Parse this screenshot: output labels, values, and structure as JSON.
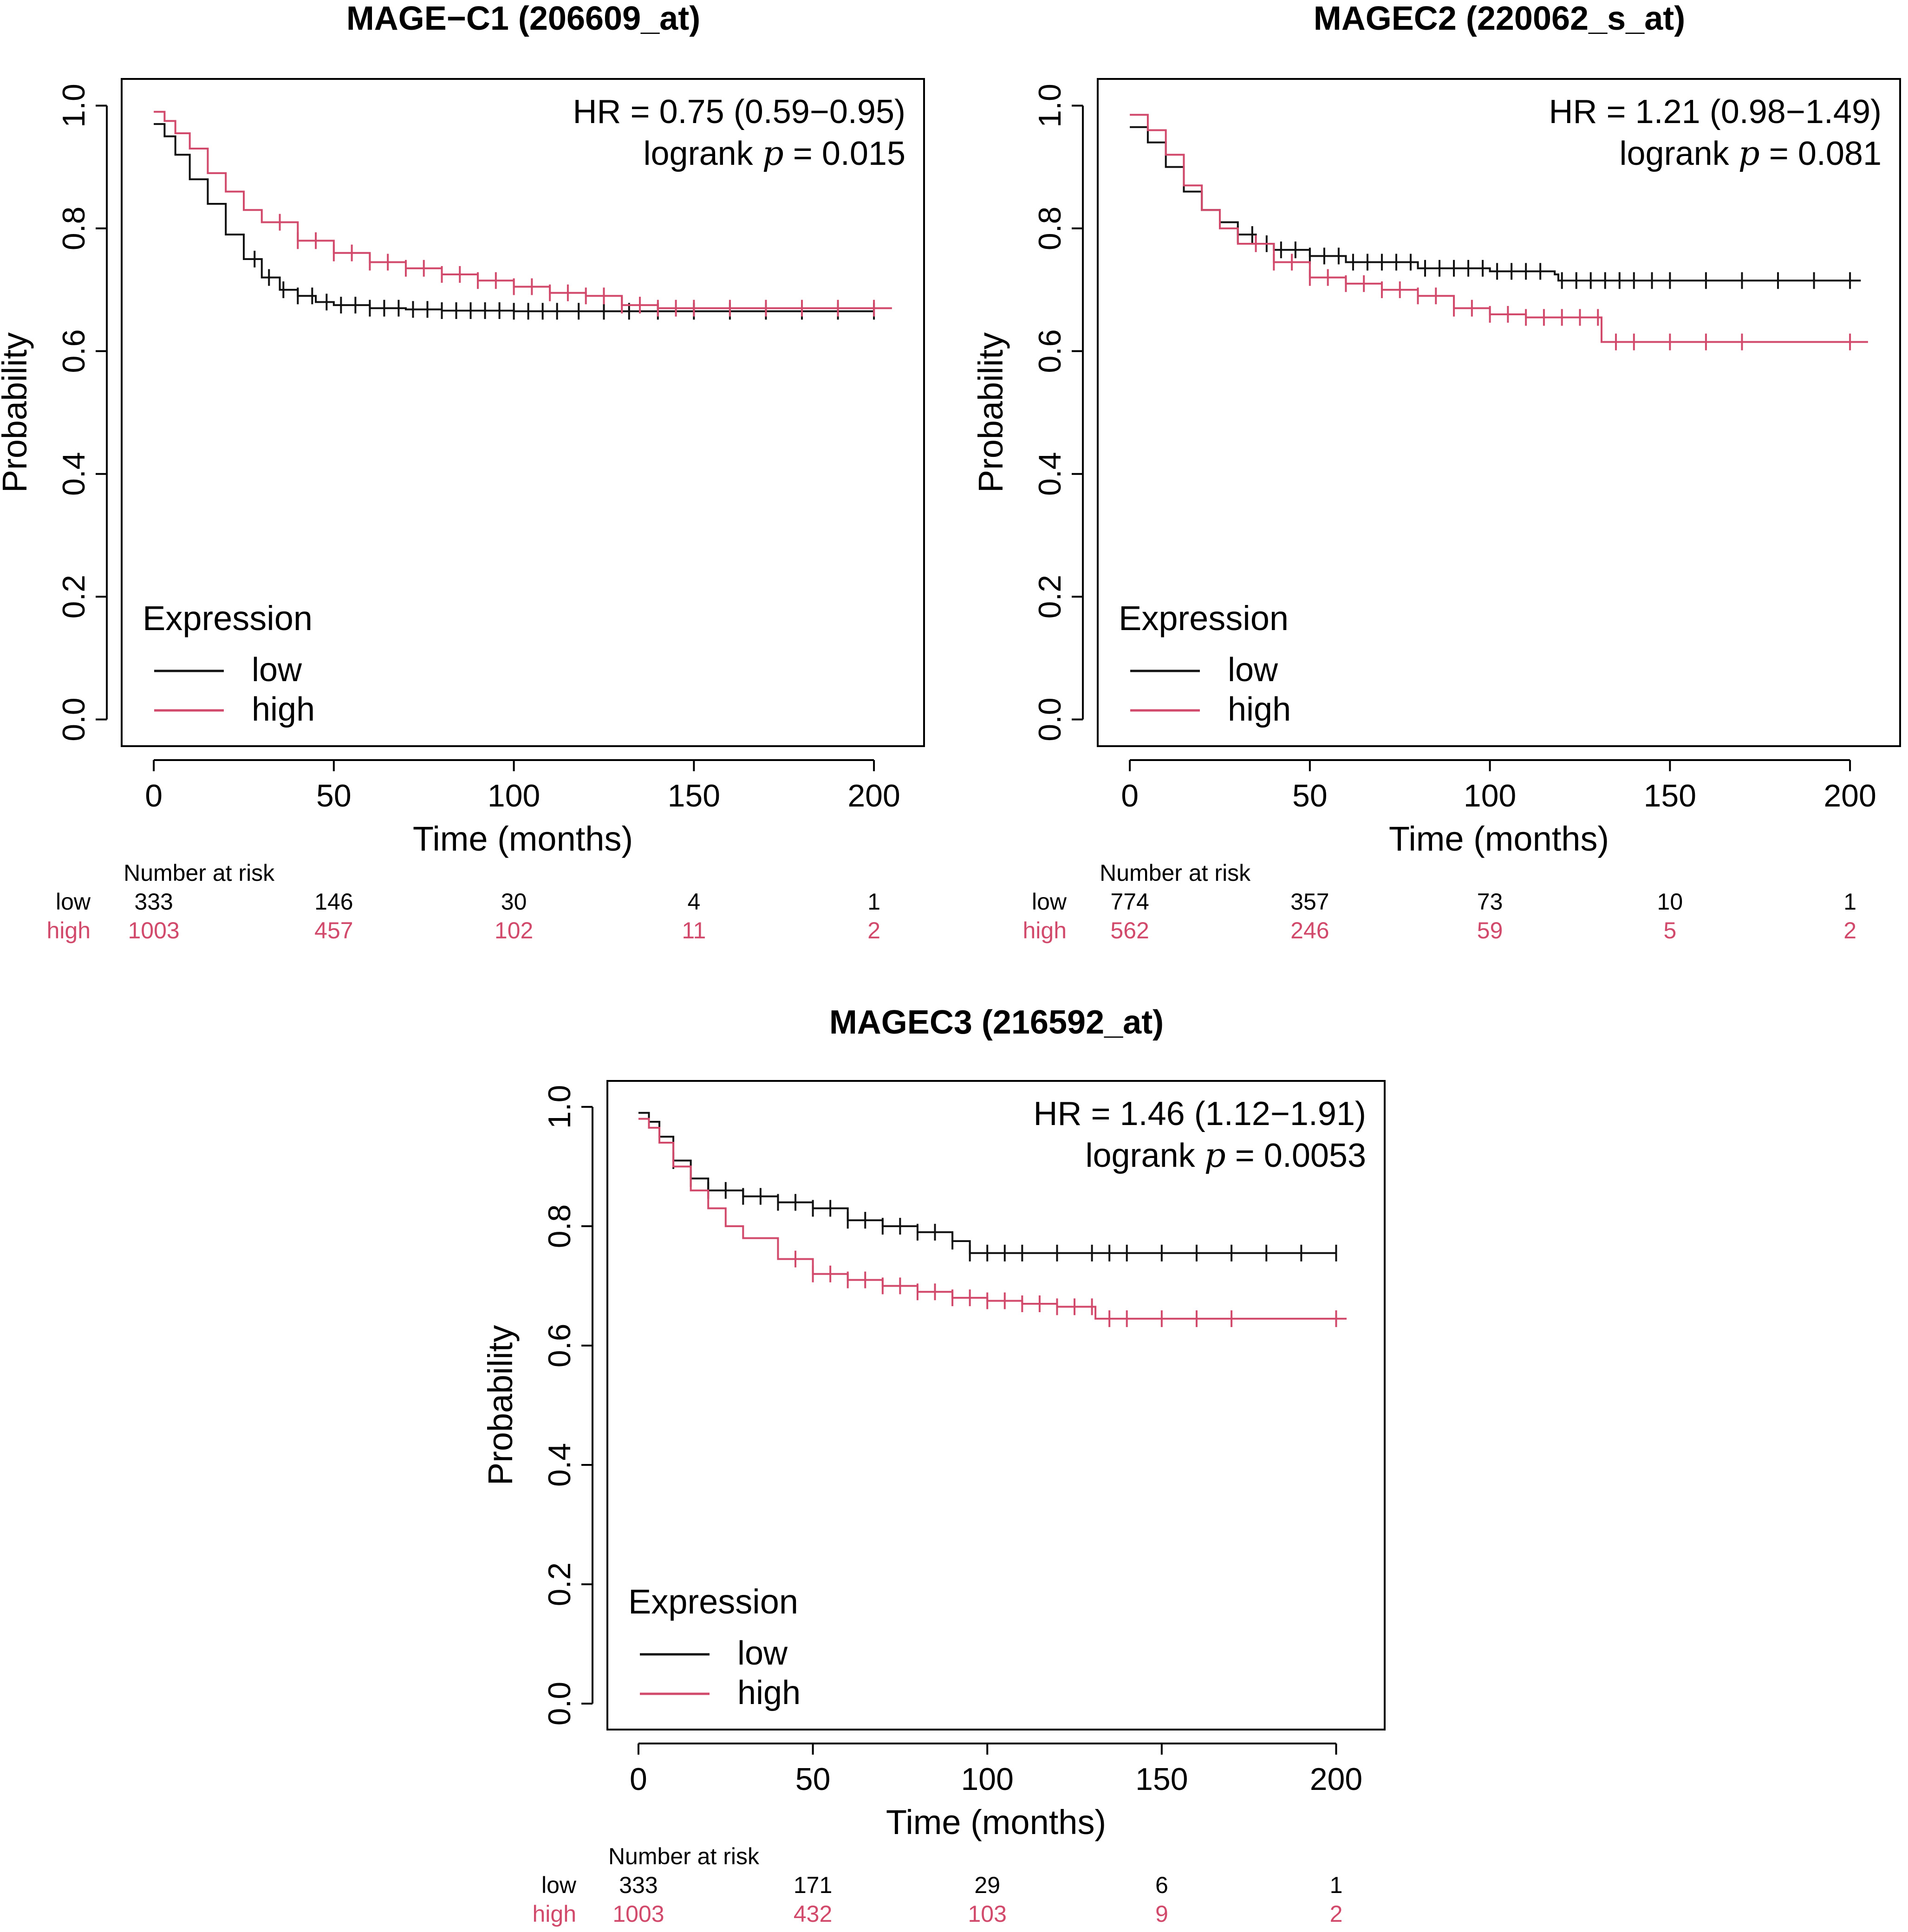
{
  "colors": {
    "low": "#111111",
    "high": "#D1496B",
    "axis": "#000000"
  },
  "chart_data": [
    {
      "type": "line",
      "title": "MAGE−C1 (206609_at)",
      "xlabel": "Time (months)",
      "ylabel": "Probability",
      "xlim": [
        0,
        205
      ],
      "ylim": [
        0,
        1.0
      ],
      "x_ticks": [
        "0",
        "50",
        "100",
        "150",
        "200"
      ],
      "y_ticks": [
        "0.0",
        "0.2",
        "0.4",
        "0.6",
        "0.8",
        "1.0"
      ],
      "hr_text": "HR = 0.75  (0.59−0.95)",
      "logrank_prefix": "logrank ",
      "p_symbol": "p",
      "p_value_text": " = 0.015",
      "legend_title": "Expression",
      "series": [
        {
          "name": "low",
          "x": [
            0,
            3,
            6,
            10,
            15,
            20,
            25,
            30,
            35,
            40,
            45,
            50,
            60,
            70,
            80,
            100,
            150,
            200
          ],
          "y": [
            0.97,
            0.95,
            0.92,
            0.88,
            0.84,
            0.79,
            0.75,
            0.72,
            0.7,
            0.69,
            0.68,
            0.675,
            0.67,
            0.668,
            0.666,
            0.665,
            0.665,
            0.665
          ],
          "censor_x": [
            28,
            32,
            36,
            40,
            44,
            48,
            52,
            56,
            60,
            64,
            68,
            72,
            76,
            80,
            84,
            88,
            92,
            96,
            100,
            104,
            108,
            112,
            118,
            125,
            132,
            140,
            150,
            160,
            170,
            180,
            190,
            200
          ]
        },
        {
          "name": "high",
          "x": [
            0,
            3,
            6,
            10,
            15,
            20,
            25,
            30,
            40,
            50,
            60,
            70,
            80,
            90,
            100,
            110,
            120,
            130,
            140,
            150,
            200,
            205
          ],
          "y": [
            0.99,
            0.975,
            0.955,
            0.93,
            0.89,
            0.86,
            0.83,
            0.81,
            0.78,
            0.76,
            0.745,
            0.735,
            0.725,
            0.715,
            0.705,
            0.695,
            0.69,
            0.675,
            0.67,
            0.67,
            0.67,
            0.67
          ],
          "censor_x": [
            35,
            40,
            45,
            50,
            55,
            60,
            65,
            70,
            75,
            80,
            85,
            90,
            95,
            100,
            105,
            110,
            115,
            120,
            125,
            130,
            135,
            140,
            145,
            150,
            160,
            170,
            180,
            190,
            200
          ]
        }
      ],
      "risk_table": {
        "header": "Number at risk",
        "times": [
          "0",
          "50",
          "100",
          "150",
          "200"
        ],
        "rows": [
          {
            "label": "low",
            "values": [
              "333",
              "146",
              "30",
              "4",
              "1"
            ]
          },
          {
            "label": "high",
            "values": [
              "1003",
              "457",
              "102",
              "11",
              "2"
            ]
          }
        ]
      }
    },
    {
      "type": "line",
      "title": "MAGEC2 (220062_s_at)",
      "xlabel": "Time (months)",
      "ylabel": "Probability",
      "xlim": [
        0,
        205
      ],
      "ylim": [
        0,
        1.0
      ],
      "x_ticks": [
        "0",
        "50",
        "100",
        "150",
        "200"
      ],
      "y_ticks": [
        "0.0",
        "0.2",
        "0.4",
        "0.6",
        "0.8",
        "1.0"
      ],
      "hr_text": "HR = 1.21  (0.98−1.49)",
      "logrank_prefix": "logrank ",
      "p_symbol": "p",
      "p_value_text": " = 0.081",
      "legend_title": "Expression",
      "series": [
        {
          "name": "low",
          "x": [
            0,
            5,
            10,
            15,
            20,
            25,
            30,
            35,
            40,
            50,
            60,
            80,
            100,
            118,
            119,
            200,
            203
          ],
          "y": [
            0.965,
            0.94,
            0.9,
            0.86,
            0.83,
            0.81,
            0.79,
            0.775,
            0.765,
            0.755,
            0.745,
            0.735,
            0.73,
            0.725,
            0.715,
            0.715,
            0.715
          ],
          "censor_x": [
            30,
            34,
            38,
            42,
            46,
            50,
            54,
            58,
            62,
            66,
            70,
            74,
            78,
            82,
            86,
            90,
            94,
            98,
            102,
            106,
            110,
            114,
            120,
            124,
            128,
            132,
            136,
            140,
            145,
            150,
            160,
            170,
            180,
            190,
            200
          ]
        },
        {
          "name": "high",
          "x": [
            0,
            5,
            10,
            15,
            20,
            25,
            30,
            40,
            50,
            60,
            70,
            80,
            90,
            100,
            110,
            120,
            130,
            131,
            200,
            205
          ],
          "y": [
            0.985,
            0.96,
            0.92,
            0.87,
            0.83,
            0.8,
            0.775,
            0.745,
            0.72,
            0.71,
            0.7,
            0.69,
            0.67,
            0.66,
            0.655,
            0.655,
            0.655,
            0.615,
            0.615,
            0.615
          ],
          "censor_x": [
            35,
            40,
            45,
            50,
            55,
            60,
            65,
            70,
            75,
            80,
            85,
            90,
            95,
            100,
            105,
            110,
            115,
            120,
            125,
            130,
            135,
            140,
            150,
            160,
            170,
            200
          ]
        }
      ],
      "risk_table": {
        "header": "Number at risk",
        "times": [
          "0",
          "50",
          "100",
          "150",
          "200"
        ],
        "rows": [
          {
            "label": "low",
            "values": [
              "774",
              "357",
              "73",
              "10",
              "1"
            ]
          },
          {
            "label": "high",
            "values": [
              "562",
              "246",
              "59",
              "5",
              "2"
            ]
          }
        ]
      }
    },
    {
      "type": "line",
      "title": "MAGEC3 (216592_at)",
      "xlabel": "Time (months)",
      "ylabel": "Probability",
      "xlim": [
        0,
        205
      ],
      "ylim": [
        0,
        1.0
      ],
      "x_ticks": [
        "0",
        "50",
        "100",
        "150",
        "200"
      ],
      "y_ticks": [
        "0.0",
        "0.2",
        "0.4",
        "0.6",
        "0.8",
        "1.0"
      ],
      "hr_text": "HR = 1.46  (1.12−1.91)",
      "logrank_prefix": "logrank ",
      "p_symbol": "p",
      "p_value_text": " = 0.0053",
      "legend_title": "Expression",
      "series": [
        {
          "name": "low",
          "x": [
            0,
            3,
            6,
            10,
            15,
            20,
            30,
            40,
            50,
            60,
            70,
            80,
            90,
            95,
            200
          ],
          "y": [
            0.99,
            0.975,
            0.95,
            0.91,
            0.88,
            0.86,
            0.85,
            0.84,
            0.83,
            0.81,
            0.8,
            0.79,
            0.775,
            0.755,
            0.755
          ],
          "censor_x": [
            10,
            15,
            20,
            25,
            30,
            35,
            40,
            45,
            50,
            55,
            60,
            65,
            70,
            75,
            80,
            85,
            90,
            95,
            100,
            105,
            110,
            120,
            130,
            135,
            140,
            150,
            160,
            170,
            180,
            190,
            200
          ]
        },
        {
          "name": "high",
          "x": [
            0,
            3,
            6,
            10,
            15,
            20,
            25,
            30,
            40,
            50,
            60,
            70,
            80,
            90,
            100,
            110,
            120,
            130,
            131,
            203
          ],
          "y": [
            0.98,
            0.965,
            0.94,
            0.9,
            0.86,
            0.83,
            0.8,
            0.78,
            0.745,
            0.72,
            0.71,
            0.7,
            0.69,
            0.68,
            0.675,
            0.67,
            0.665,
            0.665,
            0.645,
            0.645
          ],
          "censor_x": [
            45,
            50,
            55,
            60,
            65,
            70,
            75,
            80,
            85,
            90,
            95,
            100,
            105,
            110,
            115,
            120,
            125,
            130,
            135,
            140,
            150,
            160,
            170,
            200
          ]
        }
      ],
      "risk_table": {
        "header": "Number at risk",
        "times": [
          "0",
          "50",
          "100",
          "150",
          "200"
        ],
        "rows": [
          {
            "label": "low",
            "values": [
              "333",
              "171",
              "29",
              "6",
              "1"
            ]
          },
          {
            "label": "high",
            "values": [
              "1003",
              "432",
              "103",
              "9",
              "2"
            ]
          }
        ]
      }
    }
  ]
}
